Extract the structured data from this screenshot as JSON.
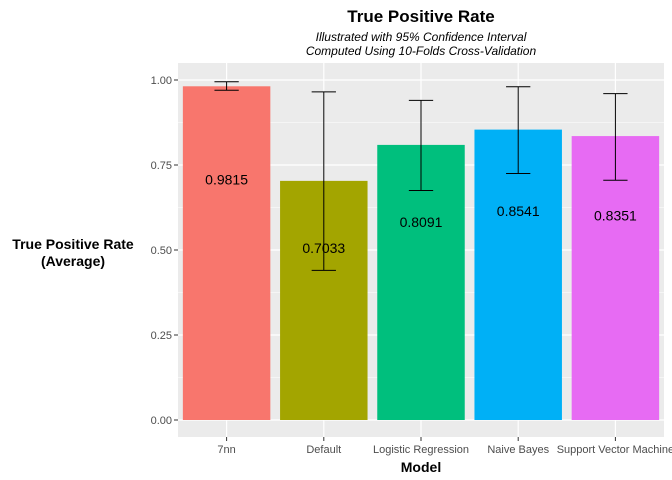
{
  "chart_data": {
    "type": "bar",
    "title": "True Positive Rate",
    "subtitle_lines": [
      "Illustrated with 95% Confidence Interval",
      "Computed Using 10-Folds Cross-Validation"
    ],
    "xlabel": "Model",
    "ylabel_lines": [
      "True Positive Rate",
      "(Average)"
    ],
    "ylim": [
      0,
      1.0
    ],
    "yticks": [
      "0.00",
      "0.25",
      "0.50",
      "0.75",
      "1.00"
    ],
    "ytick_values": [
      0,
      0.25,
      0.5,
      0.75,
      1.0
    ],
    "categories": [
      "7nn",
      "Default",
      "Logistic Regression",
      "Naive Bayes",
      "Support Vector Machine"
    ],
    "values": [
      0.9815,
      0.7033,
      0.8091,
      0.8541,
      0.8351
    ],
    "value_labels": [
      "0.9815",
      "0.7033",
      "0.8091",
      "0.8541",
      "0.8351"
    ],
    "error_low": [
      0.97,
      0.44,
      0.675,
      0.725,
      0.705
    ],
    "error_high": [
      0.995,
      0.965,
      0.94,
      0.98,
      0.96
    ],
    "colors": [
      "#F8766D",
      "#A3A500",
      "#00BF7D",
      "#00B0F6",
      "#E76BF3"
    ],
    "panel_background": "#EBEBEB",
    "grid": true
  }
}
